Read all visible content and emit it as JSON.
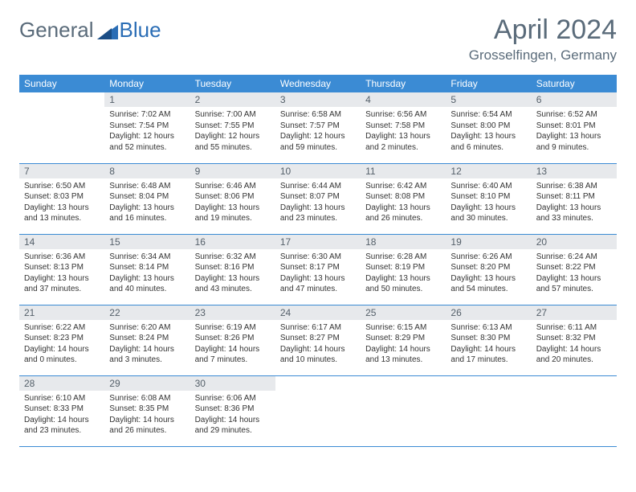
{
  "brand": {
    "part1": "General",
    "part2": "Blue"
  },
  "title": "April 2024",
  "location": "Grosselfingen, Germany",
  "colors": {
    "header_bg": "#3b8bd4",
    "header_fg": "#ffffff",
    "daynum_bg": "#e7e9ec",
    "text": "#333333",
    "muted": "#5a6b7a",
    "rule": "#3b8bd4"
  },
  "weekdays": [
    "Sunday",
    "Monday",
    "Tuesday",
    "Wednesday",
    "Thursday",
    "Friday",
    "Saturday"
  ],
  "grid": [
    [
      {
        "n": "",
        "lines": []
      },
      {
        "n": "1",
        "lines": [
          "Sunrise: 7:02 AM",
          "Sunset: 7:54 PM",
          "Daylight: 12 hours and 52 minutes."
        ]
      },
      {
        "n": "2",
        "lines": [
          "Sunrise: 7:00 AM",
          "Sunset: 7:55 PM",
          "Daylight: 12 hours and 55 minutes."
        ]
      },
      {
        "n": "3",
        "lines": [
          "Sunrise: 6:58 AM",
          "Sunset: 7:57 PM",
          "Daylight: 12 hours and 59 minutes."
        ]
      },
      {
        "n": "4",
        "lines": [
          "Sunrise: 6:56 AM",
          "Sunset: 7:58 PM",
          "Daylight: 13 hours and 2 minutes."
        ]
      },
      {
        "n": "5",
        "lines": [
          "Sunrise: 6:54 AM",
          "Sunset: 8:00 PM",
          "Daylight: 13 hours and 6 minutes."
        ]
      },
      {
        "n": "6",
        "lines": [
          "Sunrise: 6:52 AM",
          "Sunset: 8:01 PM",
          "Daylight: 13 hours and 9 minutes."
        ]
      }
    ],
    [
      {
        "n": "7",
        "lines": [
          "Sunrise: 6:50 AM",
          "Sunset: 8:03 PM",
          "Daylight: 13 hours and 13 minutes."
        ]
      },
      {
        "n": "8",
        "lines": [
          "Sunrise: 6:48 AM",
          "Sunset: 8:04 PM",
          "Daylight: 13 hours and 16 minutes."
        ]
      },
      {
        "n": "9",
        "lines": [
          "Sunrise: 6:46 AM",
          "Sunset: 8:06 PM",
          "Daylight: 13 hours and 19 minutes."
        ]
      },
      {
        "n": "10",
        "lines": [
          "Sunrise: 6:44 AM",
          "Sunset: 8:07 PM",
          "Daylight: 13 hours and 23 minutes."
        ]
      },
      {
        "n": "11",
        "lines": [
          "Sunrise: 6:42 AM",
          "Sunset: 8:08 PM",
          "Daylight: 13 hours and 26 minutes."
        ]
      },
      {
        "n": "12",
        "lines": [
          "Sunrise: 6:40 AM",
          "Sunset: 8:10 PM",
          "Daylight: 13 hours and 30 minutes."
        ]
      },
      {
        "n": "13",
        "lines": [
          "Sunrise: 6:38 AM",
          "Sunset: 8:11 PM",
          "Daylight: 13 hours and 33 minutes."
        ]
      }
    ],
    [
      {
        "n": "14",
        "lines": [
          "Sunrise: 6:36 AM",
          "Sunset: 8:13 PM",
          "Daylight: 13 hours and 37 minutes."
        ]
      },
      {
        "n": "15",
        "lines": [
          "Sunrise: 6:34 AM",
          "Sunset: 8:14 PM",
          "Daylight: 13 hours and 40 minutes."
        ]
      },
      {
        "n": "16",
        "lines": [
          "Sunrise: 6:32 AM",
          "Sunset: 8:16 PM",
          "Daylight: 13 hours and 43 minutes."
        ]
      },
      {
        "n": "17",
        "lines": [
          "Sunrise: 6:30 AM",
          "Sunset: 8:17 PM",
          "Daylight: 13 hours and 47 minutes."
        ]
      },
      {
        "n": "18",
        "lines": [
          "Sunrise: 6:28 AM",
          "Sunset: 8:19 PM",
          "Daylight: 13 hours and 50 minutes."
        ]
      },
      {
        "n": "19",
        "lines": [
          "Sunrise: 6:26 AM",
          "Sunset: 8:20 PM",
          "Daylight: 13 hours and 54 minutes."
        ]
      },
      {
        "n": "20",
        "lines": [
          "Sunrise: 6:24 AM",
          "Sunset: 8:22 PM",
          "Daylight: 13 hours and 57 minutes."
        ]
      }
    ],
    [
      {
        "n": "21",
        "lines": [
          "Sunrise: 6:22 AM",
          "Sunset: 8:23 PM",
          "Daylight: 14 hours and 0 minutes."
        ]
      },
      {
        "n": "22",
        "lines": [
          "Sunrise: 6:20 AM",
          "Sunset: 8:24 PM",
          "Daylight: 14 hours and 3 minutes."
        ]
      },
      {
        "n": "23",
        "lines": [
          "Sunrise: 6:19 AM",
          "Sunset: 8:26 PM",
          "Daylight: 14 hours and 7 minutes."
        ]
      },
      {
        "n": "24",
        "lines": [
          "Sunrise: 6:17 AM",
          "Sunset: 8:27 PM",
          "Daylight: 14 hours and 10 minutes."
        ]
      },
      {
        "n": "25",
        "lines": [
          "Sunrise: 6:15 AM",
          "Sunset: 8:29 PM",
          "Daylight: 14 hours and 13 minutes."
        ]
      },
      {
        "n": "26",
        "lines": [
          "Sunrise: 6:13 AM",
          "Sunset: 8:30 PM",
          "Daylight: 14 hours and 17 minutes."
        ]
      },
      {
        "n": "27",
        "lines": [
          "Sunrise: 6:11 AM",
          "Sunset: 8:32 PM",
          "Daylight: 14 hours and 20 minutes."
        ]
      }
    ],
    [
      {
        "n": "28",
        "lines": [
          "Sunrise: 6:10 AM",
          "Sunset: 8:33 PM",
          "Daylight: 14 hours and 23 minutes."
        ]
      },
      {
        "n": "29",
        "lines": [
          "Sunrise: 6:08 AM",
          "Sunset: 8:35 PM",
          "Daylight: 14 hours and 26 minutes."
        ]
      },
      {
        "n": "30",
        "lines": [
          "Sunrise: 6:06 AM",
          "Sunset: 8:36 PM",
          "Daylight: 14 hours and 29 minutes."
        ]
      },
      {
        "n": "",
        "lines": []
      },
      {
        "n": "",
        "lines": []
      },
      {
        "n": "",
        "lines": []
      },
      {
        "n": "",
        "lines": []
      }
    ]
  ]
}
